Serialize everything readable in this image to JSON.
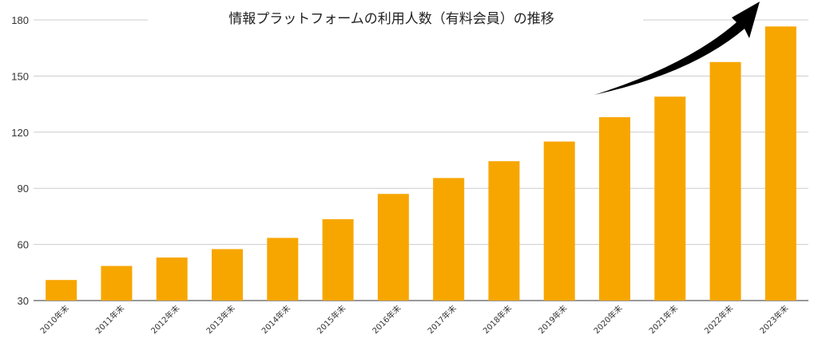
{
  "chart_data": {
    "type": "bar",
    "title": "情報プラットフォームの利用人数（有料会員）の推移",
    "xlabel": "",
    "ylabel": "",
    "ylim": [
      30,
      180
    ],
    "yticks": [
      30,
      60,
      90,
      120,
      150,
      180
    ],
    "categories": [
      "2010年末",
      "2011年末",
      "2012年末",
      "2013年末",
      "2014年末",
      "2015年末",
      "2016年末",
      "2017年末",
      "2018年末",
      "2019年末",
      "2020年末",
      "2021年末",
      "2022年末",
      "2023年末"
    ],
    "values": [
      41,
      48.5,
      53,
      57.5,
      63.5,
      73.5,
      87,
      95.5,
      104.5,
      115,
      128,
      139,
      157.5,
      176.5
    ],
    "grid": true,
    "legend": "none",
    "bar_color": "#F7A600",
    "arrow_color": "#000000",
    "annotation": "upward-trend-arrow"
  }
}
